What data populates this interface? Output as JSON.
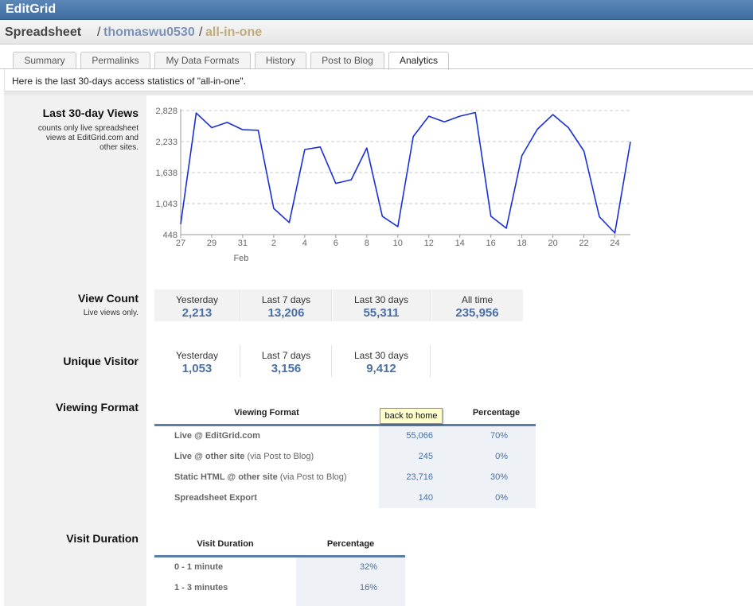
{
  "header": {
    "brand": "EditGrid"
  },
  "breadcrumb": {
    "section": "Spreadsheet",
    "sep": "/",
    "owner": "thomaswu0530",
    "doc": "all-in-one"
  },
  "tabs": [
    {
      "label": "Summary",
      "active": false
    },
    {
      "label": "Permalinks",
      "active": false
    },
    {
      "label": "My Data Formats",
      "active": false
    },
    {
      "label": "History",
      "active": false
    },
    {
      "label": "Post to Blog",
      "active": false
    },
    {
      "label": "Analytics",
      "active": true
    }
  ],
  "note": "Here is the last 30-days access statistics of \"all-in-one\".",
  "views": {
    "title": "Last 30-day Views",
    "subtitle_lines": [
      "counts only live spreadsheet",
      "views at EditGrid.com and",
      "other sites."
    ]
  },
  "chart_data": {
    "type": "line",
    "y_ticks": [
      "2,828",
      "2,233",
      "1,638",
      "1,043",
      "448"
    ],
    "y_tick_values": [
      2828,
      2233,
      1638,
      1043,
      448
    ],
    "ylim": [
      448,
      2828
    ],
    "x_ticks": [
      "27",
      "29",
      "31",
      "2",
      "4",
      "6",
      "8",
      "10",
      "12",
      "14",
      "16",
      "18",
      "20",
      "22",
      "24"
    ],
    "x_month_label": "Feb",
    "grid": true,
    "line_color": "#1a2fd6",
    "series": [
      {
        "values": [
          650,
          2780,
          2500,
          2600,
          2460,
          2450,
          950,
          680,
          2080,
          2130,
          1430,
          1500,
          2110,
          800,
          600,
          2330,
          2720,
          2610,
          2720,
          2790,
          800,
          570,
          1960,
          2470,
          2750,
          2500,
          2050,
          790,
          480,
          2230
        ]
      }
    ]
  },
  "view_count": {
    "title": "View Count",
    "subtitle": "Live views only.",
    "items": [
      {
        "label": "Yesterday",
        "value": "2,213"
      },
      {
        "label": "Last 7 days",
        "value": "13,206"
      },
      {
        "label": "Last 30 days",
        "value": "55,311"
      },
      {
        "label": "All time",
        "value": "235,956"
      }
    ]
  },
  "unique_visitor": {
    "title": "Unique Visitor",
    "items": [
      {
        "label": "Yesterday",
        "value": "1,053"
      },
      {
        "label": "Last 7 days",
        "value": "3,156"
      },
      {
        "label": "Last 30 days",
        "value": "9,412"
      }
    ]
  },
  "viewing_format": {
    "title": "Viewing Format",
    "col1": "Viewing Format",
    "col3": "Percentage",
    "rows": [
      {
        "label": "Live @ EditGrid.com",
        "extra": "",
        "count": "55,066",
        "pct": "70%"
      },
      {
        "label": "Live @ other site",
        "extra": "(via Post to Blog)",
        "count": "245",
        "pct": "0%"
      },
      {
        "label": "Static HTML @ other site",
        "extra": "(via Post to Blog)",
        "count": "23,716",
        "pct": "30%"
      },
      {
        "label": "Spreadsheet Export",
        "extra": "",
        "count": "140",
        "pct": "0%"
      }
    ]
  },
  "tooltip": "back to home",
  "visit_duration": {
    "title": "Visit Duration",
    "col1": "Visit Duration",
    "col2": "Percentage",
    "rows": [
      {
        "label": "0 - 1 minute",
        "pct": "32%"
      },
      {
        "label": "1 - 3 minutes",
        "pct": "16%"
      }
    ]
  }
}
